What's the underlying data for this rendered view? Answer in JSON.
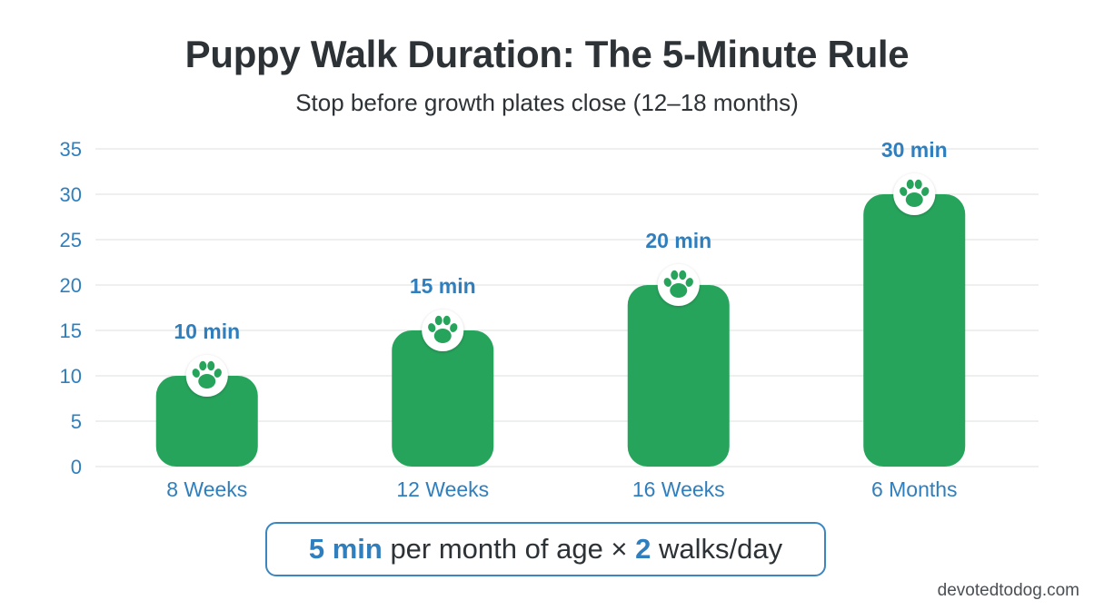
{
  "title": "Puppy Walk Duration: The 5-Minute Rule",
  "subtitle": "Stop before growth plates close (12–18 months)",
  "formula": {
    "minutes": "5 min",
    "text1": " per month of age × ",
    "walks": "2",
    "text2": " walks/day"
  },
  "watermark": "devotedtodog.com",
  "colors": {
    "bar": "#27a45c",
    "axis_text": "#2f7fbe",
    "title": "#2d3236",
    "grid": "#e3e6e8",
    "paw": "#27a45c"
  },
  "icons": {
    "bar_topper": "paw-icon"
  },
  "chart_data": {
    "type": "bar",
    "title": "Puppy Walk Duration: The 5-Minute Rule",
    "subtitle": "Stop before growth plates close (12–18 months)",
    "categories": [
      "8 Weeks",
      "12 Weeks",
      "16 Weeks",
      "6 Months"
    ],
    "values": [
      10,
      15,
      20,
      30
    ],
    "value_labels": [
      "10 min",
      "15 min",
      "20 min",
      "30 min"
    ],
    "ylim": [
      0,
      35
    ],
    "yticks": [
      0,
      5,
      10,
      15,
      20,
      25,
      30,
      35
    ],
    "grid": true,
    "legend": "none"
  }
}
